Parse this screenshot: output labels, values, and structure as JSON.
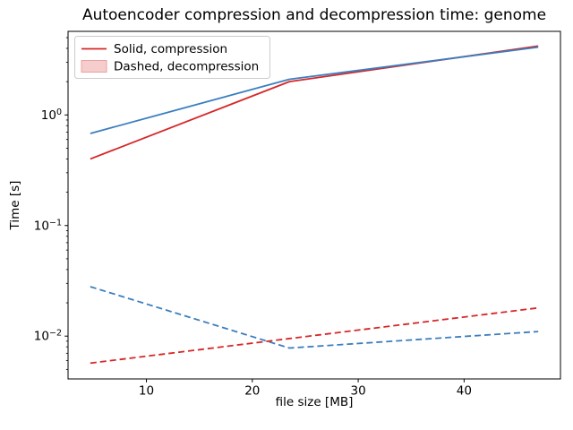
{
  "figure": {
    "title": "Autoencoder compression and decompression time: genome"
  },
  "chart_data": {
    "type": "line",
    "title": "Autoencoder compression and decompression time: genome",
    "xlabel": "file size [MB]",
    "ylabel": "Time [s]",
    "yscale": "log",
    "grid": false,
    "x": [
      4.7,
      23.5,
      47
    ],
    "series": [
      {
        "name": "compression-red",
        "legend_group": "Solid, compression",
        "color": "#d62728",
        "style": "solid",
        "values": [
          0.4,
          2.0,
          4.2
        ]
      },
      {
        "name": "compression-blue",
        "legend_group": "Solid, compression",
        "color": "#3c7ebf",
        "style": "solid",
        "values": [
          0.68,
          2.1,
          4.1
        ]
      },
      {
        "name": "decompression-blue",
        "legend_group": "Dashed, decompression",
        "color": "#3c7ebf",
        "style": "dashed",
        "values": [
          0.028,
          0.0078,
          0.011
        ]
      },
      {
        "name": "decompression-red",
        "legend_group": "Dashed, decompression",
        "color": "#d62728",
        "style": "dashed",
        "values": [
          0.0057,
          0.0095,
          0.018
        ]
      }
    ],
    "xticks": [
      10,
      20,
      30,
      40
    ],
    "yticks": [
      {
        "v": 1,
        "base": "10",
        "exp": "0"
      },
      {
        "v": 0.1,
        "base": "10",
        "exp": "−1"
      },
      {
        "v": 0.01,
        "base": "10",
        "exp": "−2"
      }
    ],
    "xlim": [
      2.6,
      49.1
    ],
    "ylim": [
      0.0041,
      5.7
    ],
    "legend": {
      "position": "upper left",
      "entries": [
        {
          "label": "Solid, compression",
          "swatch": "line",
          "color": "#d62728"
        },
        {
          "label": "Dashed, decompression",
          "swatch": "patch",
          "fill": "#f6cdcd",
          "border": "#ec9f9f"
        }
      ]
    },
    "colors": {
      "red": "#d62728",
      "blue": "#3c7ebf",
      "spine": "#000000",
      "legend_border": "#cccccc"
    }
  }
}
